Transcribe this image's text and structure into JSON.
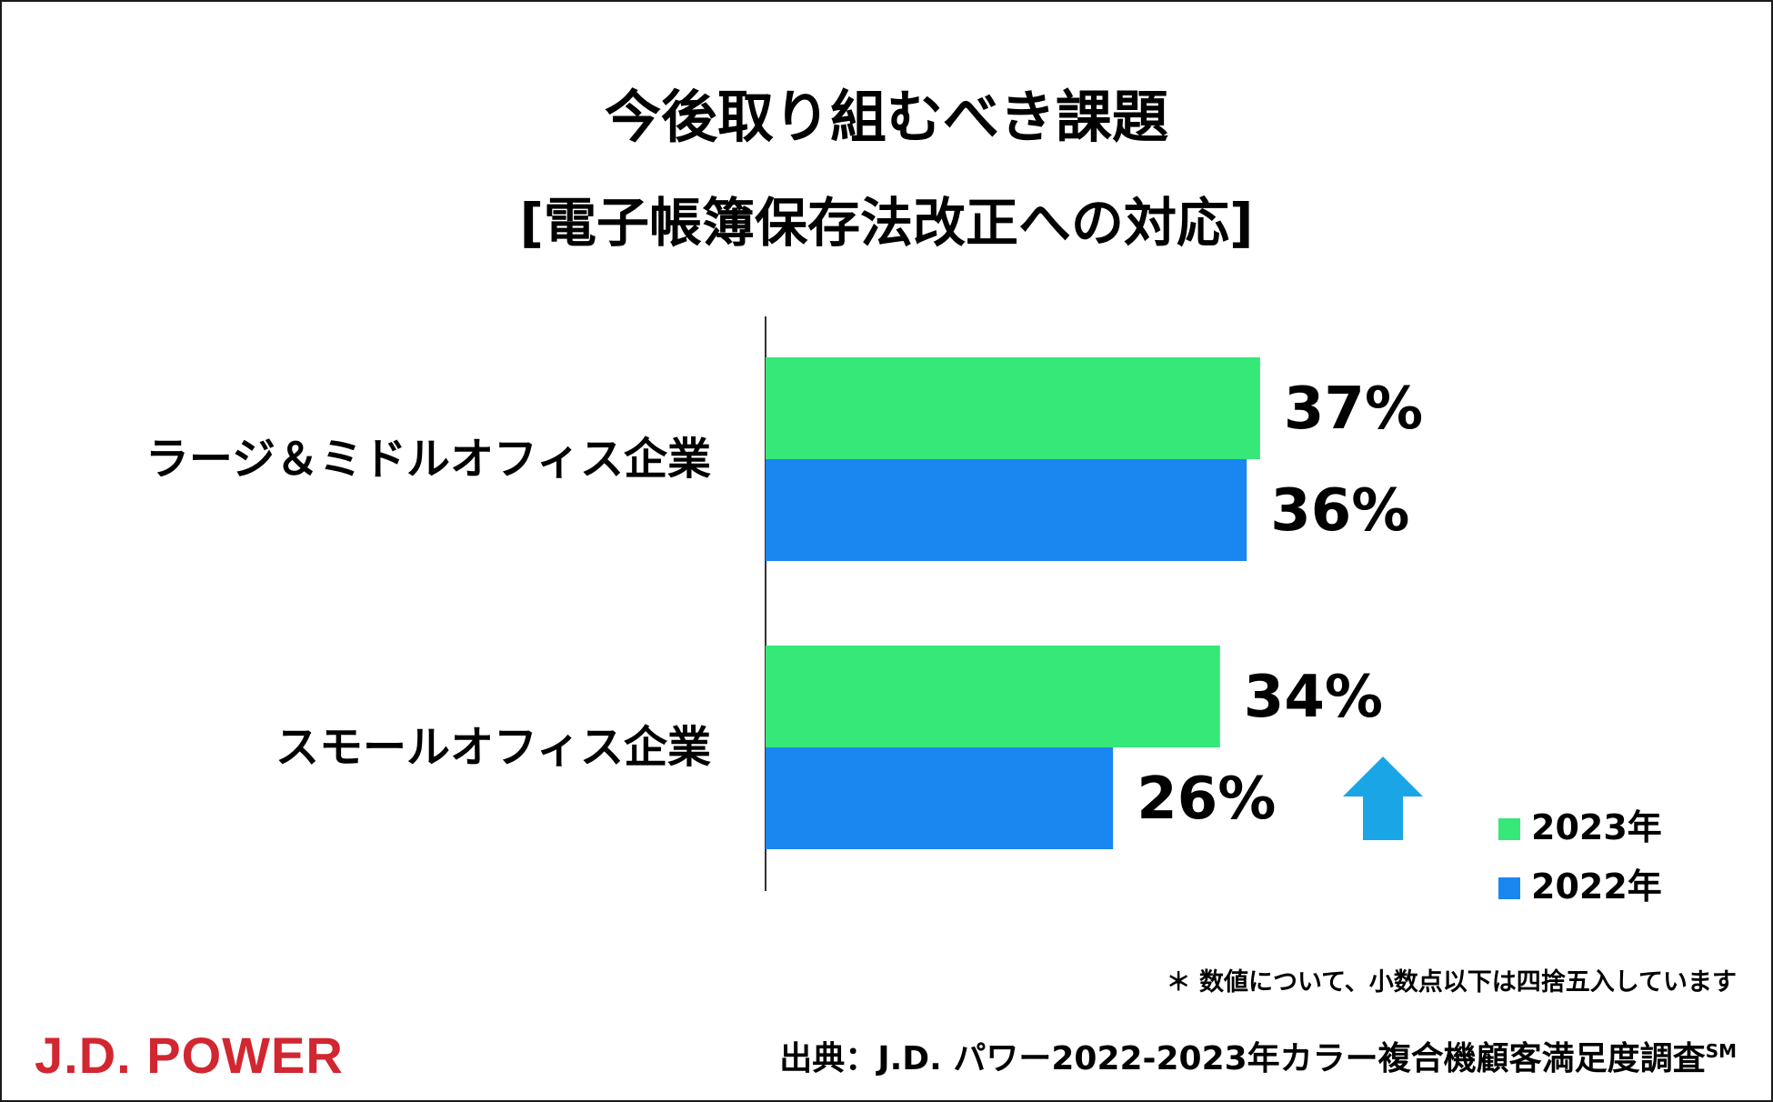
{
  "chart_data": {
    "type": "bar",
    "orientation": "horizontal",
    "title": "今後取り組むべき課題",
    "subtitle": "[電子帳簿保存法改正への対応]",
    "categories": [
      "ラージ＆ミドルオフィス企業",
      "スモールオフィス企業"
    ],
    "series": [
      {
        "name": "2023年",
        "color": "#36e878",
        "values": [
          37,
          34
        ],
        "labels": [
          "37%",
          "34%"
        ]
      },
      {
        "name": "2022年",
        "color": "#1a86f0",
        "values": [
          36,
          26
        ],
        "labels": [
          "36%",
          "26%"
        ]
      }
    ],
    "xlim": [
      0,
      50
    ],
    "grid": false,
    "legend": "bottom-right",
    "annotation": {
      "type": "arrow-up",
      "color": "#1aa5e6",
      "category": "スモールオフィス企業"
    }
  },
  "footer": {
    "note": "＊ 数値について、小数点以下は四捨五入しています",
    "source": "出典：J.D. パワー2022-2023年カラー複合機顧客満足度調査",
    "source_mark": "SM",
    "logo": "J.D. POWER"
  }
}
